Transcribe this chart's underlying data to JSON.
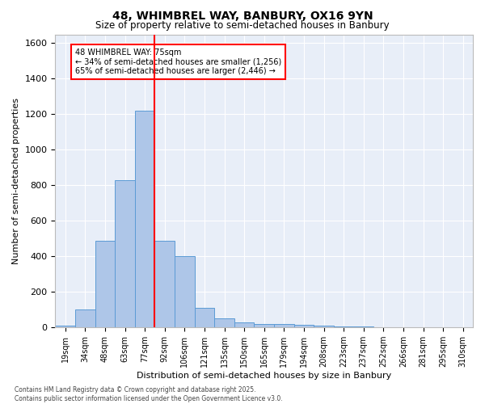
{
  "title1": "48, WHIMBREL WAY, BANBURY, OX16 9YN",
  "title2": "Size of property relative to semi-detached houses in Banbury",
  "xlabel": "Distribution of semi-detached houses by size in Banbury",
  "ylabel": "Number of semi-detached properties",
  "bins": [
    "19sqm",
    "34sqm",
    "48sqm",
    "63sqm",
    "77sqm",
    "92sqm",
    "106sqm",
    "121sqm",
    "135sqm",
    "150sqm",
    "165sqm",
    "179sqm",
    "194sqm",
    "208sqm",
    "223sqm",
    "237sqm",
    "252sqm",
    "266sqm",
    "281sqm",
    "295sqm",
    "310sqm"
  ],
  "values": [
    10,
    100,
    490,
    830,
    1220,
    490,
    400,
    110,
    50,
    30,
    20,
    20,
    15,
    10,
    5,
    5,
    3,
    2,
    1,
    1,
    0
  ],
  "bar_color": "#aec6e8",
  "bar_edge_color": "#5b9bd5",
  "vline_x": 5.0,
  "vline_color": "red",
  "annotation_text": "48 WHIMBREL WAY: 75sqm\n← 34% of semi-detached houses are smaller (1,256)\n65% of semi-detached houses are larger (2,446) →",
  "annotation_box_color": "white",
  "annotation_box_edge": "red",
  "ylim": [
    0,
    1650
  ],
  "yticks": [
    0,
    200,
    400,
    600,
    800,
    1000,
    1200,
    1400,
    1600
  ],
  "bg_color": "#e8eef8",
  "grid_color": "white",
  "footer1": "Contains HM Land Registry data © Crown copyright and database right 2025.",
  "footer2": "Contains public sector information licensed under the Open Government Licence v3.0."
}
